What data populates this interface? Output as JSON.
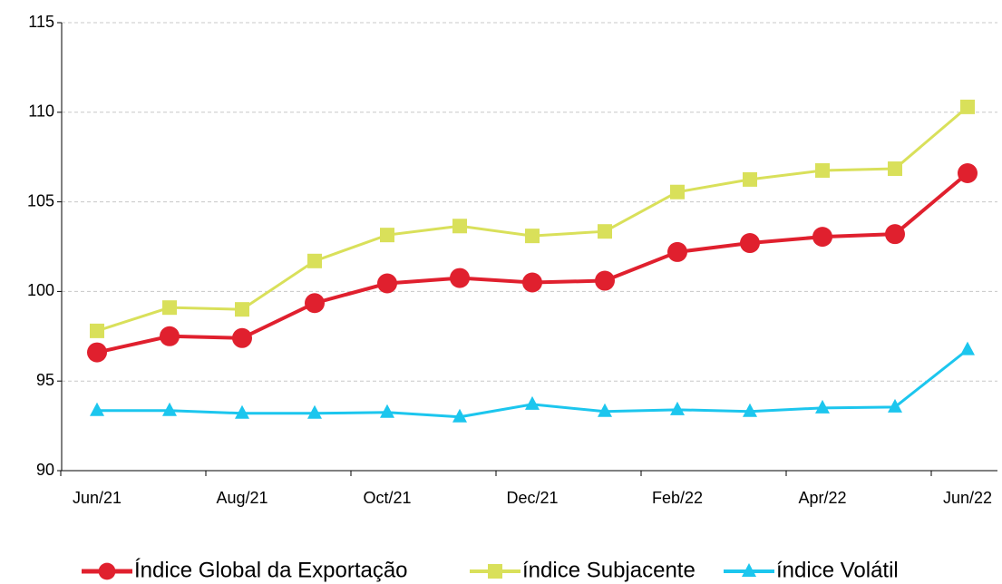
{
  "chart_data": {
    "type": "line",
    "categories": [
      "Jun/21",
      null,
      "Aug/21",
      null,
      "Oct/21",
      null,
      "Dec/21",
      null,
      "Feb/22",
      null,
      "Apr/22",
      null,
      "Jun/22"
    ],
    "series": [
      {
        "name": "Índice Global da Exportação",
        "color": "#e0202e",
        "marker": "circle",
        "values": [
          96.6,
          97.5,
          97.4,
          99.35,
          100.45,
          100.75,
          100.5,
          100.6,
          102.2,
          102.7,
          103.05,
          103.2,
          106.6
        ]
      },
      {
        "name": "índice Subjacente",
        "color": "#d9e05a",
        "marker": "square",
        "values": [
          97.8,
          99.1,
          99.0,
          101.7,
          103.15,
          103.65,
          103.1,
          103.35,
          105.55,
          106.25,
          106.75,
          106.85,
          110.3
        ]
      },
      {
        "name": "índice Volátil",
        "color": "#1cc6ee",
        "marker": "triangle",
        "values": [
          93.35,
          93.35,
          93.2,
          93.2,
          93.25,
          93.0,
          93.7,
          93.3,
          93.4,
          93.3,
          93.5,
          93.55,
          96.75
        ]
      }
    ],
    "ylim": [
      90,
      115
    ],
    "yticks": [
      90,
      95,
      100,
      105,
      110,
      115
    ],
    "grid": true,
    "legend": "bottom"
  }
}
